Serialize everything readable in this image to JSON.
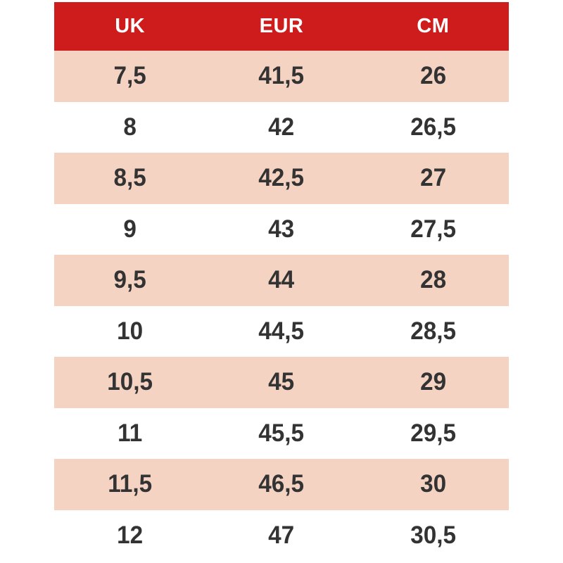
{
  "chart_data": {
    "type": "table",
    "columns": [
      "UK",
      "EUR",
      "CM"
    ],
    "rows": [
      [
        "7,5",
        "41,5",
        "26"
      ],
      [
        "8",
        "42",
        "26,5"
      ],
      [
        "8,5",
        "42,5",
        "27"
      ],
      [
        "9",
        "43",
        "27,5"
      ],
      [
        "9,5",
        "44",
        "28"
      ],
      [
        "10",
        "44,5",
        "28,5"
      ],
      [
        "10,5",
        "45",
        "29"
      ],
      [
        "11",
        "45,5",
        "29,5"
      ],
      [
        "11,5",
        "46,5",
        "30"
      ],
      [
        "12",
        "47",
        "30,5"
      ]
    ],
    "layout": {
      "header_position": "top",
      "row_striping": "alternate starting white",
      "grid": "off"
    }
  },
  "colors": {
    "header_bg": "#ce1b1b",
    "header_text": "#ffffff",
    "stripe_bg": "#f5d3c3",
    "row_bg": "#ffffff",
    "cell_text": "#333333"
  }
}
